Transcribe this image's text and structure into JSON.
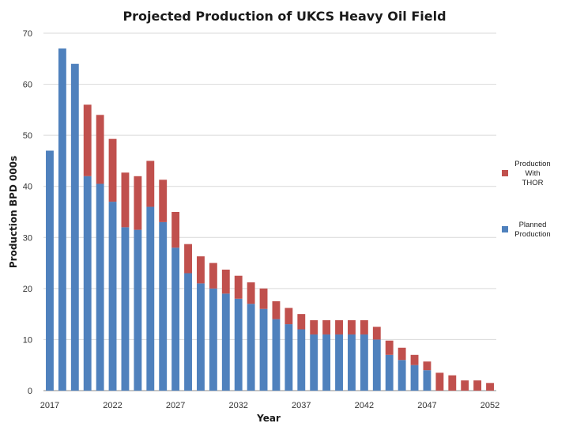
{
  "chart_data": {
    "type": "bar",
    "stacked": true,
    "title": "Projected Production of UKCS Heavy Oil Field",
    "xlabel": "Year",
    "ylabel": "Production BPD 000s",
    "ylim": [
      0,
      70
    ],
    "yticks": [
      0,
      10,
      20,
      30,
      40,
      50,
      60,
      70
    ],
    "xtick_labels": [
      "2017",
      "2022",
      "2027",
      "2032",
      "2037",
      "2042",
      "2047",
      "2052"
    ],
    "grid": true,
    "legend_position": "right",
    "categories": [
      "2017",
      "2018",
      "2019",
      "2020",
      "2021",
      "2022",
      "2023",
      "2024",
      "2025",
      "2026",
      "2027",
      "2028",
      "2029",
      "2030",
      "2031",
      "2032",
      "2033",
      "2034",
      "2035",
      "2036",
      "2037",
      "2038",
      "2039",
      "2040",
      "2041",
      "2042",
      "2043",
      "2044",
      "2045",
      "2046",
      "2047",
      "2048",
      "2049",
      "2050",
      "2051",
      "2052"
    ],
    "series": [
      {
        "name": "Planned Production",
        "color": "#4f81bd",
        "values": [
          47,
          67,
          64,
          42,
          40.5,
          37,
          32,
          31.5,
          36,
          33,
          28,
          23,
          21,
          20,
          19,
          18,
          17,
          16,
          14,
          13,
          12,
          11,
          11,
          11,
          11,
          11,
          10,
          7,
          6,
          5,
          4,
          0,
          0,
          0,
          0,
          0
        ]
      },
      {
        "name": "Production With THOR",
        "color": "#c0504d",
        "values": [
          0,
          0,
          0,
          14,
          13.5,
          12.3,
          10.7,
          10.5,
          9,
          8.3,
          7,
          5.7,
          5.3,
          5,
          4.7,
          4.5,
          4.2,
          4,
          3.5,
          3.2,
          3,
          2.8,
          2.8,
          2.8,
          2.8,
          2.8,
          2.5,
          2.8,
          2.4,
          2,
          1.7,
          3.5,
          3,
          2,
          2,
          1.5
        ]
      }
    ]
  },
  "legend": [
    {
      "lines": [
        "Production",
        "With",
        "THOR"
      ],
      "color": "#c0504d"
    },
    {
      "lines": [
        "Planned",
        "Production"
      ],
      "color": "#4f81bd"
    }
  ]
}
